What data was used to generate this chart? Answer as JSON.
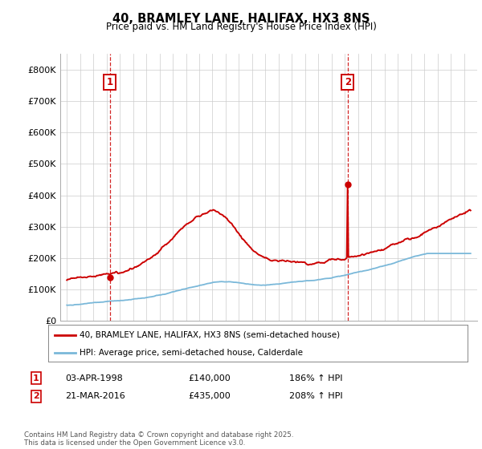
{
  "title": "40, BRAMLEY LANE, HALIFAX, HX3 8NS",
  "subtitle": "Price paid vs. HM Land Registry's House Price Index (HPI)",
  "ylim": [
    0,
    850000
  ],
  "yticks": [
    0,
    100000,
    200000,
    300000,
    400000,
    500000,
    600000,
    700000,
    800000
  ],
  "ytick_labels": [
    "£0",
    "£100K",
    "£200K",
    "£300K",
    "£400K",
    "£500K",
    "£600K",
    "£700K",
    "£800K"
  ],
  "hpi_color": "#7ab8d9",
  "price_color": "#cc0000",
  "marker1_x": 1998.25,
  "marker1_price": 140000,
  "marker2_x": 2016.22,
  "marker2_price": 435000,
  "legend_line1": "40, BRAMLEY LANE, HALIFAX, HX3 8NS (semi-detached house)",
  "legend_line2": "HPI: Average price, semi-detached house, Calderdale",
  "sale1_date": "03-APR-1998",
  "sale1_price": "£140,000",
  "sale1_hpi": "186% ↑ HPI",
  "sale2_date": "21-MAR-2016",
  "sale2_price": "£435,000",
  "sale2_hpi": "208% ↑ HPI",
  "footer": "Contains HM Land Registry data © Crown copyright and database right 2025.\nThis data is licensed under the Open Government Licence v3.0.",
  "background_color": "#ffffff",
  "grid_color": "#cccccc",
  "xlim_left": 1994.5,
  "xlim_right": 2026.0
}
